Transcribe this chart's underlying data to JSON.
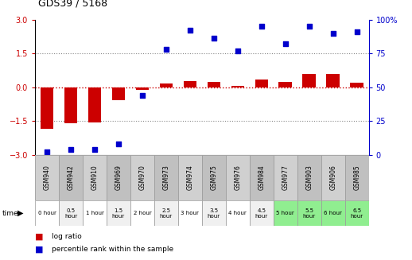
{
  "title": "GDS39 / 5168",
  "samples": [
    "GSM940",
    "GSM942",
    "GSM910",
    "GSM969",
    "GSM970",
    "GSM973",
    "GSM974",
    "GSM975",
    "GSM976",
    "GSM984",
    "GSM977",
    "GSM903",
    "GSM906",
    "GSM985"
  ],
  "time_labels": [
    "0 hour",
    "0.5\nhour",
    "1 hour",
    "1.5\nhour",
    "2 hour",
    "2.5\nhour",
    "3 hour",
    "3.5\nhour",
    "4 hour",
    "4.5\nhour",
    "5 hour",
    "5.5\nhour",
    "6 hour",
    "6.5\nhour"
  ],
  "time_bg": [
    "#ffffff",
    "#f0f0f0",
    "#ffffff",
    "#f0f0f0",
    "#ffffff",
    "#f0f0f0",
    "#ffffff",
    "#f0f0f0",
    "#ffffff",
    "#f0f0f0",
    "#90ee90",
    "#90ee90",
    "#90ee90",
    "#90ee90"
  ],
  "sample_bg_even": "#d0d0d0",
  "sample_bg_odd": "#c0c0c0",
  "log_ratio": [
    -1.85,
    -1.62,
    -1.57,
    -0.58,
    -0.12,
    0.15,
    0.27,
    0.22,
    0.07,
    0.35,
    0.22,
    0.57,
    0.58,
    0.18
  ],
  "percentile": [
    2,
    4,
    4,
    8,
    44,
    78,
    92,
    86,
    77,
    95,
    82,
    95,
    90,
    91
  ],
  "ylim_left": [
    -3,
    3
  ],
  "ylim_right": [
    0,
    100
  ],
  "left_yticks": [
    -3,
    -1.5,
    0,
    1.5,
    3
  ],
  "right_yticks": [
    0,
    25,
    50,
    75,
    100
  ],
  "right_yticklabels": [
    "0",
    "25",
    "50",
    "75",
    "100%"
  ],
  "bar_color": "#cc0000",
  "dot_color": "#0000cc",
  "zero_line_color": "#cc0000",
  "dotted_line_color": "#888888",
  "right_axis_color": "#0000cc",
  "left_axis_color": "#000000",
  "fig_bg": "#ffffff",
  "title_fontsize": 9,
  "bar_width": 0.55,
  "dot_size": 20
}
